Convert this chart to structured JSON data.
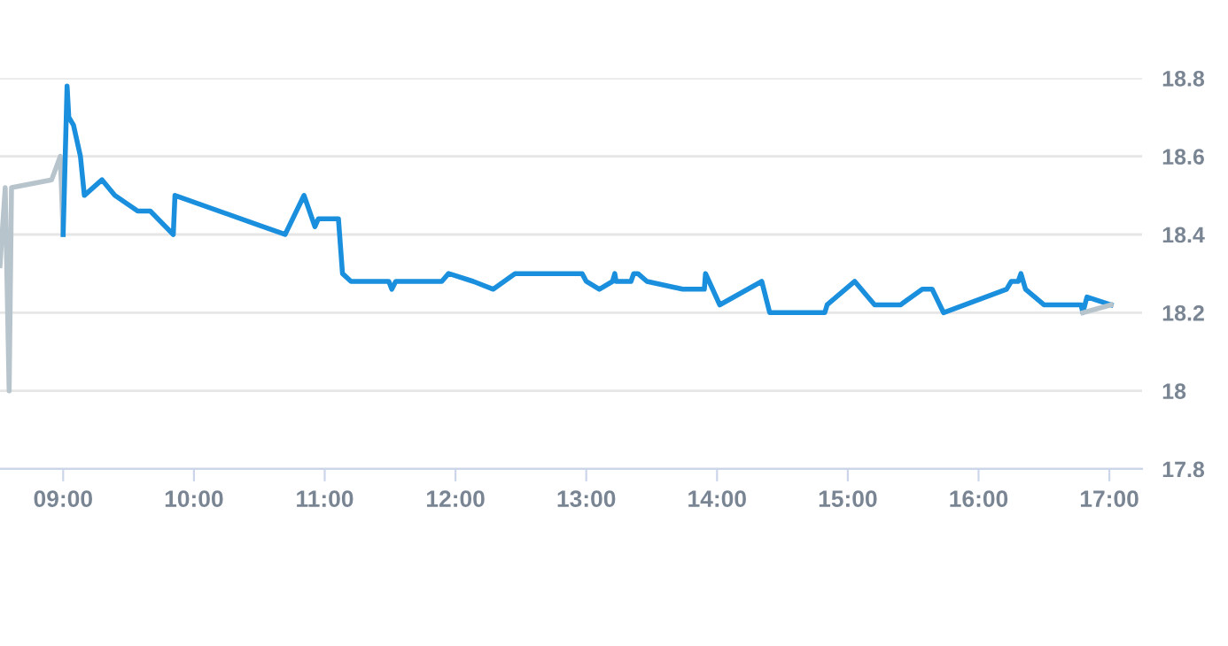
{
  "chart_data": {
    "type": "line",
    "xlim": [
      8.517,
      17.25
    ],
    "ylim": [
      17.8,
      18.8
    ],
    "xticks": [
      {
        "value": 9,
        "label": "09:00"
      },
      {
        "value": 10,
        "label": "10:00"
      },
      {
        "value": 11,
        "label": "11:00"
      },
      {
        "value": 12,
        "label": "12:00"
      },
      {
        "value": 13,
        "label": "13:00"
      },
      {
        "value": 14,
        "label": "14:00"
      },
      {
        "value": 15,
        "label": "15:00"
      },
      {
        "value": 16,
        "label": "16:00"
      },
      {
        "value": 17,
        "label": "17:00"
      }
    ],
    "yticks": [
      {
        "value": 17.8,
        "label": "17.8"
      },
      {
        "value": 18,
        "label": "18"
      },
      {
        "value": 18.2,
        "label": "18.2"
      },
      {
        "value": 18.4,
        "label": "18.4"
      },
      {
        "value": 18.6,
        "label": "18.6"
      },
      {
        "value": 18.8,
        "label": "18.8"
      }
    ],
    "grid": "y",
    "marker": "none",
    "line_style": "solid",
    "series": [
      {
        "color": "#b8c4cc",
        "x": [
          8.517,
          8.557,
          8.587,
          8.605,
          8.912,
          8.978,
          9.0
        ],
        "values": [
          18.32,
          18.52,
          18.0,
          18.52,
          18.54,
          18.6,
          18.4
        ]
      },
      {
        "color": "#1a8fdd",
        "x": [
          9.0,
          9.03,
          9.043,
          9.079,
          9.132,
          9.162,
          9.297,
          9.395,
          9.57,
          9.666,
          9.842,
          9.855,
          10.697,
          10.842,
          10.925,
          10.951,
          11.105,
          11.136,
          11.201,
          11.49,
          11.513,
          11.543,
          11.895,
          11.947,
          12.136,
          12.289,
          12.455,
          12.968,
          13.0,
          13.1,
          13.201,
          13.218,
          13.228,
          13.342,
          13.363,
          13.395,
          13.464,
          13.737,
          13.903,
          13.912,
          14.021,
          14.342,
          14.403,
          14.824,
          14.842,
          15.053,
          15.205,
          15.403,
          15.57,
          15.645,
          15.732,
          16.214,
          16.25,
          16.303,
          16.324,
          16.359,
          16.5,
          16.784,
          16.797,
          16.829,
          17.013
        ],
        "values": [
          18.4,
          18.78,
          18.7,
          18.68,
          18.6,
          18.5,
          18.54,
          18.5,
          18.46,
          18.46,
          18.4,
          18.5,
          18.4,
          18.5,
          18.42,
          18.44,
          18.44,
          18.3,
          18.28,
          18.28,
          18.26,
          18.28,
          18.28,
          18.3,
          18.28,
          18.26,
          18.3,
          18.3,
          18.28,
          18.26,
          18.28,
          18.3,
          18.28,
          18.28,
          18.3,
          18.3,
          18.28,
          18.26,
          18.26,
          18.3,
          18.22,
          18.28,
          18.2,
          18.2,
          18.22,
          18.28,
          18.22,
          18.22,
          18.26,
          18.26,
          18.2,
          18.26,
          18.28,
          18.28,
          18.3,
          18.26,
          18.22,
          18.22,
          18.2,
          18.24,
          18.22
        ]
      },
      {
        "color": "#b8c4cc",
        "x": [
          16.797,
          17.013
        ],
        "values": [
          18.2,
          18.22
        ]
      }
    ]
  }
}
